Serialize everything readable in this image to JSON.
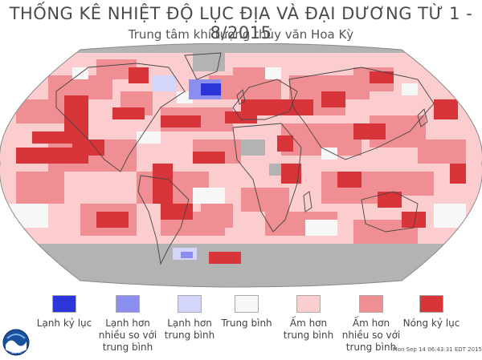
{
  "header": {
    "title": "THỐNG KÊ NHIỆT ĐỘ LỤC ĐỊA VÀ ĐẠI DƯƠNG TỪ 1 - 8/2015",
    "subtitle": "Trung tâm khí tượng thủy văn Hoa Kỳ"
  },
  "map": {
    "projection": "robinson",
    "background_gray": "#b3b3b3"
  },
  "legend": [
    {
      "label": "Lạnh kỷ lục",
      "color": "#2b35d8"
    },
    {
      "label": "Lạnh hơn\nnhiều so với\ntrung bình",
      "color": "#8a8ef0"
    },
    {
      "label": "Lạnh hơn\ntrung bình",
      "color": "#d3d5fb"
    },
    {
      "label": "Trung bình",
      "color": "#f7f7f7"
    },
    {
      "label": "Ấm hơn\ntrung bình",
      "color": "#fbcdcf"
    },
    {
      "label": "Ấm hơn\nnhiều so với\ntrung bình",
      "color": "#ef8f93"
    },
    {
      "label": "Nóng kỷ lục",
      "color": "#d8353b"
    }
  ],
  "footer": {
    "timestamp": "Mon Sep 14 06:43:31 EDT 2015",
    "logo_icon": "noaa-logo-icon",
    "logo_text": "NOAA"
  }
}
